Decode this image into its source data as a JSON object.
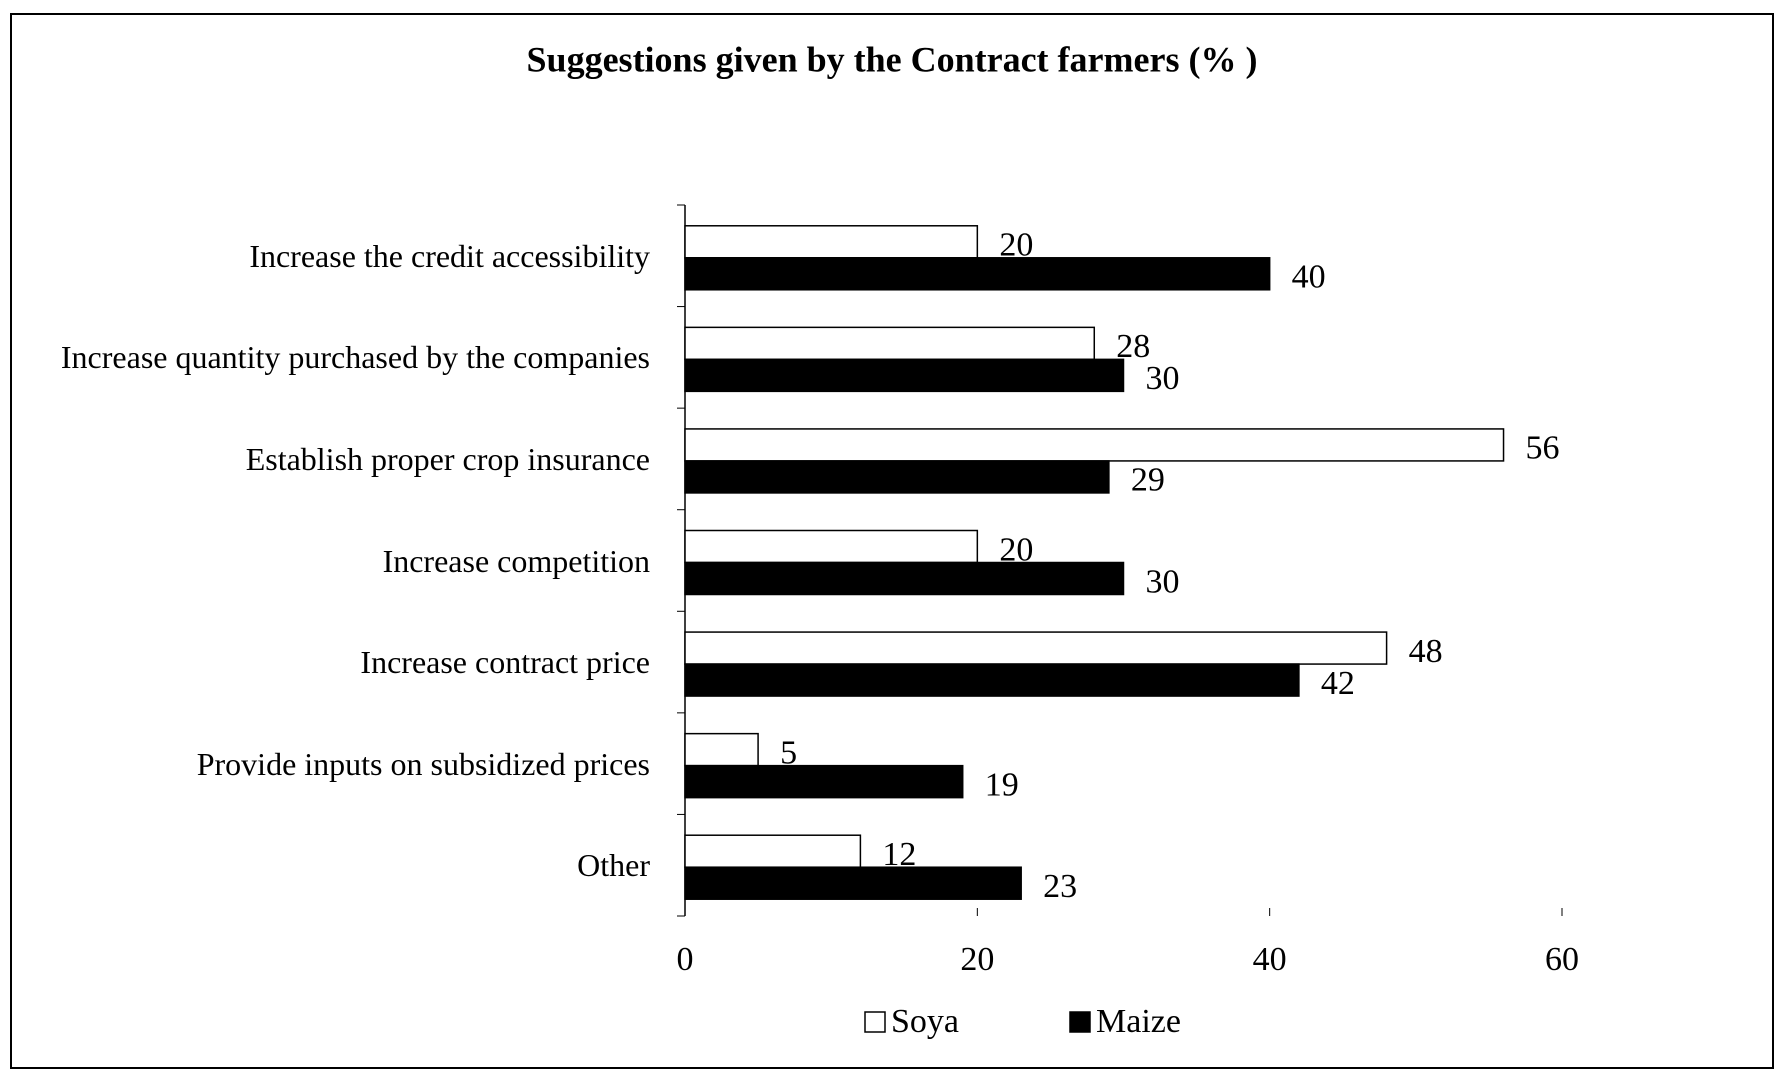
{
  "chart_data": {
    "type": "bar",
    "orientation": "horizontal",
    "title": "Suggestions given by the Contract farmers (% )",
    "categories": [
      "Increase the credit accessibility",
      "Increase quantity purchased by the companies",
      "Establish proper crop insurance",
      "Increase competition",
      "Increase  contract price",
      "Provide inputs on subsidized prices",
      "Other"
    ],
    "series": [
      {
        "name": "Soya",
        "color": "#ffffff",
        "values": [
          20,
          28,
          56,
          20,
          48,
          5,
          12
        ]
      },
      {
        "name": "Maize",
        "color": "#000000",
        "values": [
          40,
          30,
          29,
          30,
          42,
          19,
          23
        ]
      }
    ],
    "xlim": [
      0,
      60
    ],
    "xticks": [
      0,
      20,
      40,
      60
    ],
    "grid": false,
    "legend": "bottom"
  }
}
